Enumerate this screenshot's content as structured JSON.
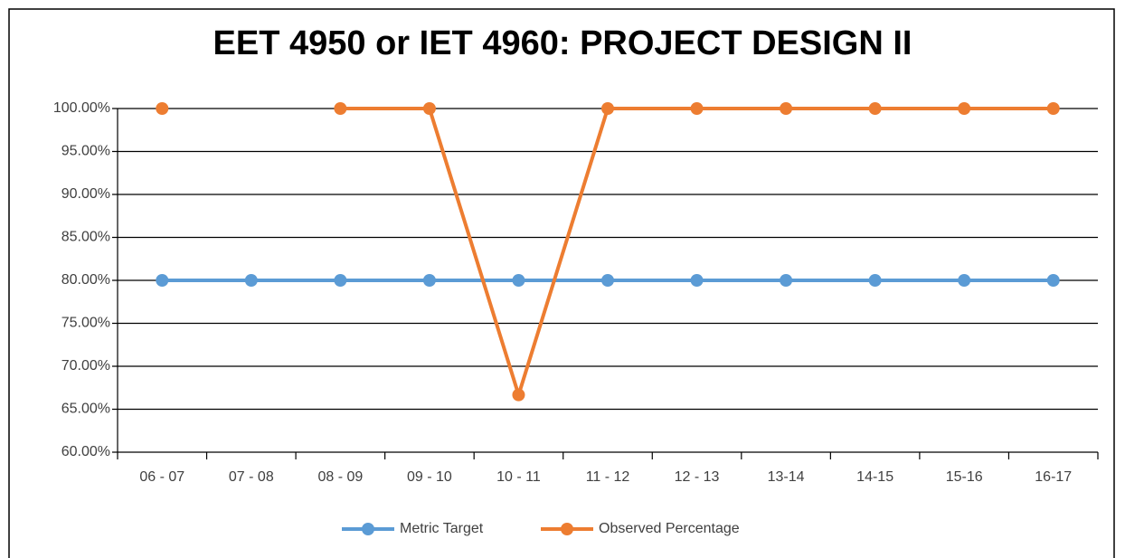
{
  "chart_data": {
    "type": "line",
    "title": "EET 4950 or IET 4960: PROJECT DESIGN II",
    "categories": [
      "06 - 07",
      "07 - 08",
      "08 - 09",
      "09 - 10",
      "10 - 11",
      "11 - 12",
      "12 - 13",
      "13-14",
      "14-15",
      "15-16",
      "16-17"
    ],
    "series": [
      {
        "name": "Metric Target",
        "color": "#5b9bd5",
        "values": [
          80,
          80,
          80,
          80,
          80,
          80,
          80,
          80,
          80,
          80,
          80
        ]
      },
      {
        "name": "Observed Percentage",
        "color": "#ed7d31",
        "values": [
          100,
          null,
          100,
          100,
          66.67,
          100,
          100,
          100,
          100,
          100,
          100
        ]
      }
    ],
    "ylim": [
      60,
      100
    ],
    "yticks": [
      {
        "value": 60,
        "label": "60.00%"
      },
      {
        "value": 65,
        "label": "65.00%"
      },
      {
        "value": 70,
        "label": "70.00%"
      },
      {
        "value": 75,
        "label": "75.00%"
      },
      {
        "value": 80,
        "label": "80.00%"
      },
      {
        "value": 85,
        "label": "85.00%"
      },
      {
        "value": 90,
        "label": "90.00%"
      },
      {
        "value": 95,
        "label": "95.00%"
      },
      {
        "value": 100,
        "label": "100.00%"
      }
    ],
    "grid": true,
    "legend": "bottom"
  }
}
